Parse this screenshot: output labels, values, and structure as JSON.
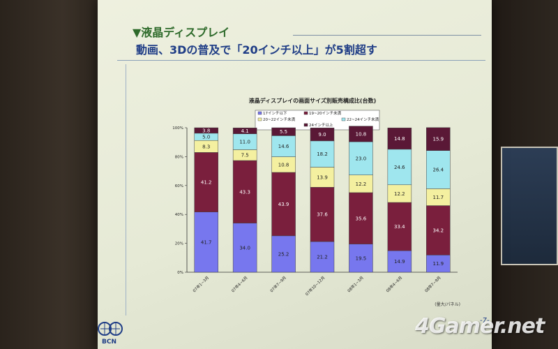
{
  "slide": {
    "section_title": "▼液晶ディスプレイ",
    "main_title": "動画、3Dの普及で「20インチ以上」が5割超す",
    "logo_text": "BCN",
    "page_number": "-7-",
    "watermark": "4Gamer.net"
  },
  "chart_data": {
    "type": "bar",
    "stacked": true,
    "percent": true,
    "title": "液晶ディスプレイの画面サイズ別販売構成比(台数)",
    "source_note": "(量大/パネル)",
    "categories": [
      "07年1~3月",
      "07年4~6月",
      "07年7~9月",
      "07年10~12月",
      "08年1~3月",
      "08年4~6月",
      "08年7~9月"
    ],
    "ylim": [
      0,
      100
    ],
    "yticks": [
      "0%",
      "20%",
      "40%",
      "60%",
      "80%",
      "100%"
    ],
    "legend_position": "top",
    "series": [
      {
        "name": "17インチ以下",
        "color": "#7777ee",
        "values": [
          41.7,
          34.0,
          25.2,
          21.2,
          19.5,
          14.9,
          11.9
        ]
      },
      {
        "name": "19~20インチ未満",
        "color": "#7a1f3d",
        "values": [
          41.2,
          43.3,
          43.9,
          37.6,
          35.6,
          33.4,
          34.2
        ]
      },
      {
        "name": "20~22インチ未満",
        "color": "#f4f0a0",
        "values": [
          8.3,
          7.5,
          10.8,
          13.9,
          12.2,
          12.2,
          11.7
        ]
      },
      {
        "name": "22~24インチ未満",
        "color": "#9fe6ee",
        "values": [
          5.0,
          11.0,
          14.6,
          18.2,
          23.0,
          24.6,
          26.4
        ]
      },
      {
        "name": "24インチ以上",
        "color": "#5a1836",
        "values": [
          3.8,
          4.1,
          5.5,
          9.0,
          10.8,
          14.8,
          15.9
        ]
      }
    ]
  }
}
